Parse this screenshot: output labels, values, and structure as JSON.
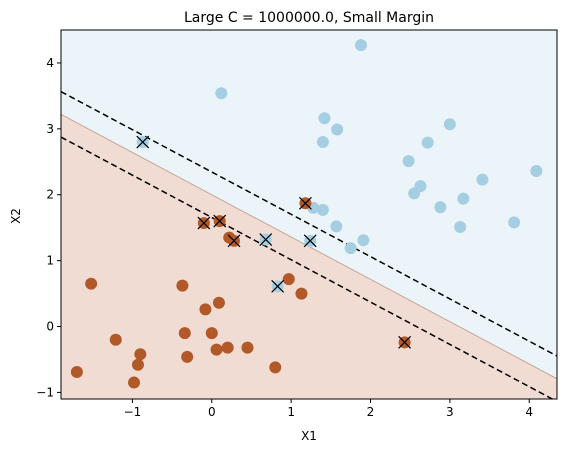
{
  "chart_data": {
    "type": "scatter",
    "title": "Large C = 1000000.0, Small Margin",
    "xlabel": "X1",
    "ylabel": "X2",
    "xlim": [
      -1.9,
      4.35
    ],
    "ylim": [
      -1.1,
      4.5
    ],
    "x_ticks": [
      -1,
      0,
      1,
      2,
      3,
      4
    ],
    "y_ticks": [
      -1,
      0,
      1,
      2,
      3,
      4
    ],
    "grid": false,
    "legend": "none",
    "colors": {
      "class_upper_point": "#a6cee3",
      "class_lower_point": "#b15928",
      "region_upper": "#ebf4f8",
      "region_lower": "#f0dcd3",
      "boundary": "#c9a596",
      "margin_line": "#000000",
      "support_vector_marker": "#000000"
    },
    "decision_boundary": {
      "slope": -0.642,
      "intercept": 2.0
    },
    "margins": [
      {
        "name": "upper_margin",
        "slope": -0.642,
        "intercept": 2.345,
        "style": "dashed"
      },
      {
        "name": "lower_margin",
        "slope": -0.642,
        "intercept": 1.655,
        "style": "dashed"
      }
    ],
    "series": [
      {
        "class": 1,
        "color": "#a6cee3",
        "points": [
          [
            1.88,
            4.27
          ],
          [
            0.12,
            3.54
          ],
          [
            1.42,
            3.16
          ],
          [
            1.58,
            2.99
          ],
          [
            1.4,
            2.8
          ],
          [
            3.0,
            3.07
          ],
          [
            2.72,
            2.79
          ],
          [
            2.48,
            2.51
          ],
          [
            2.63,
            2.13
          ],
          [
            2.55,
            2.02
          ],
          [
            2.88,
            1.81
          ],
          [
            3.17,
            1.94
          ],
          [
            3.41,
            2.23
          ],
          [
            4.09,
            2.36
          ],
          [
            3.13,
            1.51
          ],
          [
            3.81,
            1.58
          ],
          [
            1.28,
            1.8
          ],
          [
            1.4,
            1.77
          ],
          [
            1.57,
            1.52
          ],
          [
            1.91,
            1.31
          ],
          [
            1.75,
            1.19
          ],
          [
            -0.87,
            2.8
          ],
          [
            0.68,
            1.32
          ],
          [
            1.24,
            1.3
          ],
          [
            0.83,
            0.61
          ]
        ]
      },
      {
        "class": 0,
        "color": "#b15928",
        "points": [
          [
            1.18,
            1.87
          ],
          [
            -0.1,
            1.57
          ],
          [
            0.1,
            1.6
          ],
          [
            0.22,
            1.35
          ],
          [
            0.28,
            1.3
          ],
          [
            0.97,
            0.72
          ],
          [
            1.13,
            0.5
          ],
          [
            -1.52,
            0.65
          ],
          [
            -0.37,
            0.62
          ],
          [
            -0.08,
            0.26
          ],
          [
            0.09,
            0.36
          ],
          [
            -0.34,
            -0.1
          ],
          [
            0.0,
            -0.1
          ],
          [
            -1.21,
            -0.2
          ],
          [
            0.45,
            -0.32
          ],
          [
            0.2,
            -0.32
          ],
          [
            0.06,
            -0.35
          ],
          [
            -0.31,
            -0.46
          ],
          [
            -0.9,
            -0.42
          ],
          [
            -0.93,
            -0.58
          ],
          [
            -1.7,
            -0.69
          ],
          [
            0.8,
            -0.62
          ],
          [
            -0.98,
            -0.85
          ],
          [
            2.43,
            -0.24
          ]
        ]
      }
    ],
    "support_vectors": [
      [
        -0.87,
        2.8
      ],
      [
        0.68,
        1.32
      ],
      [
        1.24,
        1.3
      ],
      [
        0.83,
        0.61
      ],
      [
        1.18,
        1.87
      ],
      [
        -0.1,
        1.57
      ],
      [
        0.1,
        1.6
      ],
      [
        0.28,
        1.3
      ],
      [
        2.43,
        -0.24
      ]
    ]
  }
}
